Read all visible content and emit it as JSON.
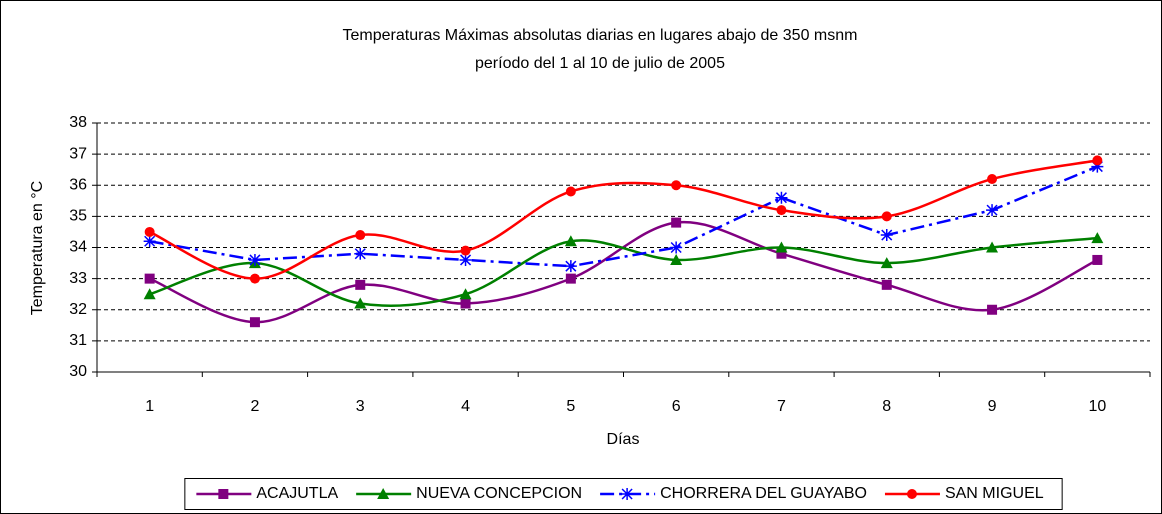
{
  "chart_data": {
    "type": "line",
    "title": "Temperaturas Máximas absolutas diarias en lugares abajo de 350 msnm",
    "subtitle": "período del 1 al 10 de julio de 2005",
    "x_label": "Días",
    "y_label": "Temperatura en °C",
    "categories": [
      "1",
      "2",
      "3",
      "4",
      "5",
      "6",
      "7",
      "8",
      "9",
      "10"
    ],
    "ylim": [
      30,
      38
    ],
    "yticks": [
      30,
      31,
      32,
      33,
      34,
      35,
      36,
      37,
      38
    ],
    "grid": true,
    "legend": "bottom",
    "series": [
      {
        "name": "ACAJUTLA",
        "color": "#800080",
        "marker": "square",
        "smooth": true,
        "line_style": "solid",
        "values": [
          33.0,
          31.6,
          32.8,
          32.2,
          33.0,
          34.8,
          33.8,
          32.8,
          32.0,
          33.6
        ]
      },
      {
        "name": "NUEVA CONCEPCION",
        "color": "#008000",
        "marker": "triangle",
        "smooth": true,
        "line_style": "solid",
        "values": [
          32.5,
          33.5,
          32.2,
          32.5,
          34.2,
          33.6,
          34.0,
          33.5,
          34.0,
          34.3
        ]
      },
      {
        "name": "CHORRERA DEL GUAYABO",
        "color": "#0000ff",
        "marker": "asterisk",
        "smooth": false,
        "line_style": "dashdot",
        "values": [
          34.2,
          33.6,
          33.8,
          33.6,
          33.4,
          34.0,
          35.6,
          34.4,
          35.2,
          36.6
        ]
      },
      {
        "name": "SAN MIGUEL",
        "color": "#ff0000",
        "marker": "circle",
        "smooth": true,
        "line_style": "solid",
        "values": [
          34.5,
          33.0,
          34.4,
          33.9,
          35.8,
          36.0,
          35.2,
          35.0,
          36.2,
          36.8
        ]
      }
    ]
  }
}
